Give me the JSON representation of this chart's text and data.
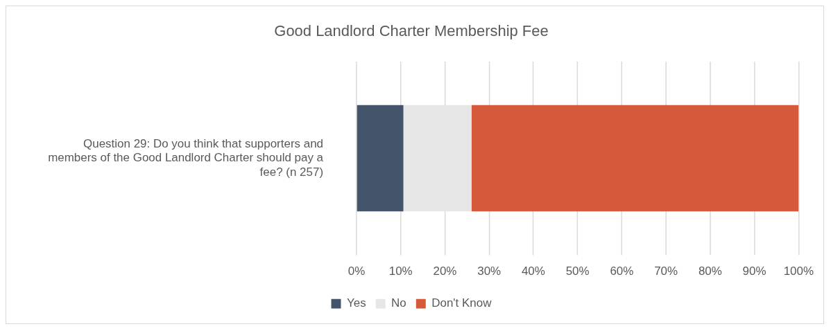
{
  "chart_data": {
    "type": "bar",
    "title": "Good Landlord Charter Membership Fee",
    "orientation": "horizontal",
    "stacked": true,
    "categories": [
      "Question 29: Do you think that supporters and members of the Good Landlord Charter should pay a fee? (n 257)"
    ],
    "series": [
      {
        "name": "Yes",
        "color": "#44546a",
        "values": [
          10.6
        ]
      },
      {
        "name": "No",
        "color": "#e7e6e6",
        "values": [
          15.4
        ]
      },
      {
        "name": "Don't Know",
        "color": "#d5593b",
        "values": [
          74
        ]
      }
    ],
    "xlim": [
      0,
      100
    ],
    "xticks": [
      {
        "value": 0,
        "label": "0%"
      },
      {
        "value": 10,
        "label": "10%"
      },
      {
        "value": 20,
        "label": "20%"
      },
      {
        "value": 30,
        "label": "30%"
      },
      {
        "value": 40,
        "label": "40%"
      },
      {
        "value": 50,
        "label": "50%"
      },
      {
        "value": 60,
        "label": "60%"
      },
      {
        "value": 70,
        "label": "70%"
      },
      {
        "value": 80,
        "label": "80%"
      },
      {
        "value": 90,
        "label": "90%"
      },
      {
        "value": 100,
        "label": "100%"
      }
    ],
    "grid": "x",
    "legend": "bottom"
  }
}
